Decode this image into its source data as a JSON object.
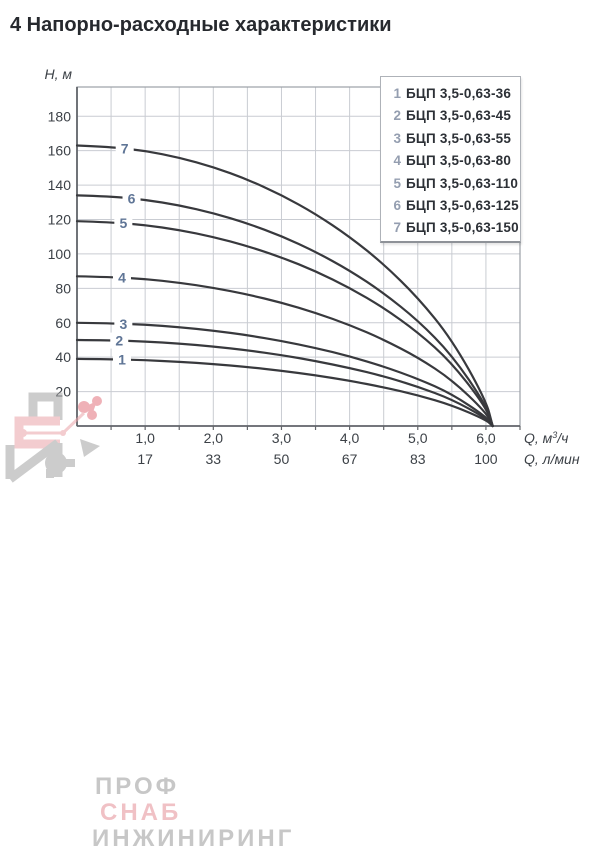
{
  "page": {
    "title": "4 Напорно-расходные характеристики"
  },
  "chart_data": {
    "type": "line",
    "title": "Напорно-расходные характеристики",
    "x_axis": {
      "label": "Q, м³/ч",
      "label2": "Q, л/мин",
      "range": [
        0,
        6.5
      ],
      "grid_step": 0.5,
      "ticks": [
        {
          "q": 1,
          "label": "1,0",
          "label2": "17"
        },
        {
          "q": 2,
          "label": "2,0",
          "label2": "33"
        },
        {
          "q": 3,
          "label": "3,0",
          "label2": "50"
        },
        {
          "q": 4,
          "label": "4,0",
          "label2": "67"
        },
        {
          "q": 5,
          "label": "5,0",
          "label2": "83"
        },
        {
          "q": 6,
          "label": "6,0",
          "label2": "100"
        }
      ]
    },
    "y_axis": {
      "label": "H, м",
      "range": [
        0,
        197
      ],
      "grid_step": 20,
      "ticks": [
        20,
        40,
        60,
        80,
        100,
        120,
        140,
        160,
        180
      ]
    },
    "legend_position": "top-right",
    "grid": true,
    "series": [
      {
        "num": "1",
        "name": "БЦП 3,5-0,63-36",
        "max_head_m": 39,
        "label_q": 0.66,
        "points": [
          [
            0,
            39.0
          ],
          [
            0.5,
            38.8
          ],
          [
            1,
            38.3
          ],
          [
            1.5,
            37.3
          ],
          [
            2,
            36.0
          ],
          [
            2.5,
            34.3
          ],
          [
            3,
            32.1
          ],
          [
            3.5,
            29.5
          ],
          [
            4,
            26.3
          ],
          [
            4.5,
            22.5
          ],
          [
            5,
            17.9
          ],
          [
            5.5,
            12.1
          ],
          [
            6,
            3.6
          ],
          [
            6.1,
            0
          ]
        ]
      },
      {
        "num": "2",
        "name": "БЦП 3,5-0,63-45",
        "max_head_m": 50,
        "label_q": 0.62,
        "points": [
          [
            0,
            50.0
          ],
          [
            0.5,
            49.8
          ],
          [
            1,
            49.1
          ],
          [
            1.5,
            47.9
          ],
          [
            2,
            46.2
          ],
          [
            2.5,
            44.0
          ],
          [
            3,
            41.2
          ],
          [
            3.5,
            37.8
          ],
          [
            4,
            33.7
          ],
          [
            4.5,
            28.9
          ],
          [
            5,
            22.9
          ],
          [
            5.5,
            15.5
          ],
          [
            6,
            4.6
          ],
          [
            6.1,
            0
          ]
        ]
      },
      {
        "num": "3",
        "name": "БЦП 3,5-0,63-55",
        "max_head_m": 60,
        "label_q": 0.68,
        "points": [
          [
            0,
            60.0
          ],
          [
            0.5,
            59.7
          ],
          [
            1,
            58.9
          ],
          [
            1.5,
            57.4
          ],
          [
            2,
            55.4
          ],
          [
            2.5,
            52.8
          ],
          [
            3,
            49.4
          ],
          [
            3.5,
            45.4
          ],
          [
            4,
            40.5
          ],
          [
            4.5,
            34.6
          ],
          [
            5,
            27.5
          ],
          [
            5.5,
            18.6
          ],
          [
            6,
            5.5
          ],
          [
            6.1,
            0
          ]
        ]
      },
      {
        "num": "4",
        "name": "БЦП 3,5-0,63-80",
        "max_head_m": 87,
        "label_q": 0.66,
        "points": [
          [
            0,
            87.0
          ],
          [
            0.5,
            86.6
          ],
          [
            1,
            85.4
          ],
          [
            1.5,
            83.3
          ],
          [
            2,
            80.3
          ],
          [
            2.5,
            76.5
          ],
          [
            3,
            71.7
          ],
          [
            3.5,
            65.8
          ],
          [
            4,
            58.7
          ],
          [
            4.5,
            50.2
          ],
          [
            5,
            39.9
          ],
          [
            5.5,
            26.9
          ],
          [
            6,
            8.0
          ],
          [
            6.1,
            0
          ]
        ]
      },
      {
        "num": "5",
        "name": "БЦП 3,5-0,63-110",
        "max_head_m": 119,
        "label_q": 0.68,
        "points": [
          [
            0,
            119.0
          ],
          [
            0.5,
            118.4
          ],
          [
            1,
            116.8
          ],
          [
            1.5,
            113.9
          ],
          [
            2,
            109.9
          ],
          [
            2.5,
            104.6
          ],
          [
            3,
            98.0
          ],
          [
            3.5,
            90.0
          ],
          [
            4,
            80.3
          ],
          [
            4.5,
            68.7
          ],
          [
            5,
            54.5
          ],
          [
            5.5,
            36.8
          ],
          [
            6,
            10.9
          ],
          [
            6.1,
            0
          ]
        ]
      },
      {
        "num": "6",
        "name": "БЦП 3,5-0,63-125",
        "max_head_m": 134,
        "label_q": 0.8,
        "points": [
          [
            0,
            134.0
          ],
          [
            0.5,
            133.4
          ],
          [
            1,
            131.5
          ],
          [
            1.5,
            128.3
          ],
          [
            2,
            123.7
          ],
          [
            2.5,
            117.8
          ],
          [
            3,
            110.4
          ],
          [
            3.5,
            101.3
          ],
          [
            4,
            90.4
          ],
          [
            4.5,
            77.3
          ],
          [
            5,
            61.4
          ],
          [
            5.5,
            41.4
          ],
          [
            6,
            12.3
          ],
          [
            6.1,
            0
          ]
        ]
      },
      {
        "num": "7",
        "name": "БЦП 3,5-0,63-150",
        "max_head_m": 163,
        "label_q": 0.7,
        "points": [
          [
            0,
            163.0
          ],
          [
            0.5,
            162.2
          ],
          [
            1,
            159.9
          ],
          [
            1.5,
            156.0
          ],
          [
            2,
            150.5
          ],
          [
            2.5,
            143.3
          ],
          [
            3,
            134.3
          ],
          [
            3.5,
            123.3
          ],
          [
            4,
            110.0
          ],
          [
            4.5,
            94.1
          ],
          [
            5,
            74.7
          ],
          [
            5.5,
            50.4
          ],
          [
            6,
            15.0
          ],
          [
            6.1,
            0
          ]
        ]
      }
    ]
  },
  "watermark": {
    "line1": "ПРОФ",
    "line2": "СНАБ",
    "line3": "ИНЖИНИРИНГ"
  },
  "colors": {
    "curve": "#38393d",
    "curve_label": "#5f7596",
    "legend_number": "#949eb0",
    "text_dark": "#2c3036",
    "axis_text": "#3c4147",
    "grid": "#c9ccd2",
    "plot_border": "#9ba0a6",
    "axis_line": "#63666b",
    "watermark_gray": "#9b9b9b",
    "watermark_pink": "#e8a0a7"
  }
}
